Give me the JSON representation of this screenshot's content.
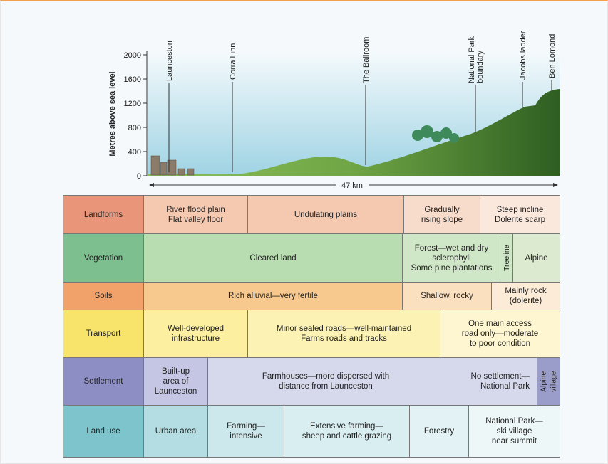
{
  "profile": {
    "y_axis_label": "Metres above sea level",
    "yticks": [
      0,
      400,
      800,
      1200,
      1600,
      2000
    ],
    "landmarks": [
      {
        "lines": [
          "Launceston"
        ]
      },
      {
        "lines": [
          "Corra Linn"
        ]
      },
      {
        "lines": [
          "The Ballroom"
        ]
      },
      {
        "lines": [
          "National Park",
          "boundary"
        ]
      },
      {
        "lines": [
          "Jacobs ladder"
        ]
      },
      {
        "lines": [
          "Ben Lomond"
        ]
      }
    ],
    "distance_label": "47 km"
  },
  "table": {
    "rows": [
      {
        "label": "Landforms",
        "cells": [
          [
            "River flood plain",
            "Flat valley floor"
          ],
          [
            "Undulating plains"
          ],
          [
            "Gradually",
            "rising slope"
          ],
          [
            "Steep incline",
            "Dolerite scarp"
          ]
        ]
      },
      {
        "label": "Vegetation",
        "cells": [
          [
            "Cleared land"
          ],
          [
            "Forest—wet and dry",
            "sclerophyll",
            "Some pine plantations"
          ],
          [
            "Treeline"
          ],
          [
            "Alpine"
          ]
        ]
      },
      {
        "label": "Soils",
        "cells": [
          [
            "Rich alluvial—very fertile"
          ],
          [
            "Shallow, rocky"
          ],
          [
            "Mainly rock",
            "(dolerite)"
          ]
        ]
      },
      {
        "label": "Transport",
        "cells": [
          [
            "Well-developed",
            "infrastructure"
          ],
          [
            "Minor sealed roads—well-maintained",
            "Farms roads and tracks"
          ],
          [
            "One main access",
            "road only—moderate",
            "to poor condition"
          ]
        ]
      },
      {
        "label": "Settlement",
        "cells": [
          [
            "Built-up",
            "area of",
            "Launceston"
          ],
          [
            "Farmhouses—more dispersed with",
            "distance from Launceston"
          ],
          [
            "No settlement—",
            "National Park"
          ],
          [
            "Alpine",
            "village"
          ]
        ]
      },
      {
        "label": "Land use",
        "cells": [
          [
            "Urban area"
          ],
          [
            "Farming—",
            "intensive"
          ],
          [
            "Extensive farming—",
            "sheep and cattle grazing"
          ],
          [
            "Forestry"
          ],
          [
            "National Park—",
            "ski village",
            "near summit"
          ]
        ]
      }
    ]
  }
}
